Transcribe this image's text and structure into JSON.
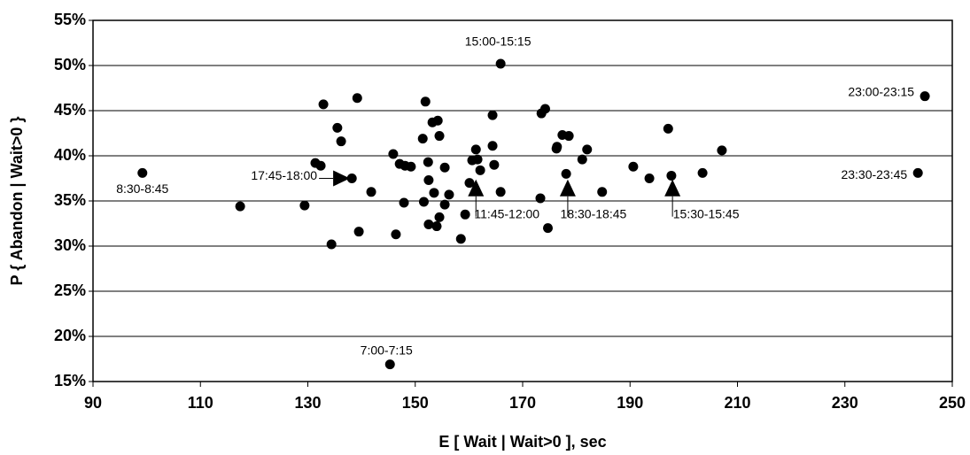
{
  "chart_data": {
    "type": "scatter",
    "xlabel": "E [ Wait | Wait>0 ], sec",
    "ylabel": "P { Abandon | Wait>0 }",
    "color": "#000000",
    "grid": true,
    "xlim": [
      90,
      250
    ],
    "xticks": [
      90,
      110,
      130,
      150,
      170,
      190,
      210,
      230,
      250
    ],
    "ylim": [
      15,
      55
    ],
    "yticks": [
      {
        "value": 15,
        "label": "15%"
      },
      {
        "value": 20,
        "label": "20%"
      },
      {
        "value": 25,
        "label": "25%"
      },
      {
        "value": 30,
        "label": "30%"
      },
      {
        "value": 35,
        "label": "35%"
      },
      {
        "value": 40,
        "label": "40%"
      },
      {
        "value": 45,
        "label": "45%"
      },
      {
        "value": 50,
        "label": "50%"
      },
      {
        "value": 55,
        "label": "55%"
      }
    ],
    "x": [
      117.4,
      129.4,
      134.4,
      131.4,
      132.4,
      132.9,
      135.5,
      136.2,
      138.2,
      139.2,
      139.5,
      141.8,
      145.9,
      146.4,
      147.1,
      148.1,
      149.2,
      147.9,
      151.9,
      151.4,
      151.6,
      152.4,
      152.5,
      152.5,
      153.2,
      154.2,
      154.5,
      153.5,
      154.0,
      154.5,
      155.5,
      155.5,
      156.3,
      158.5,
      159.3,
      160.1,
      160.6,
      161.3,
      161.6,
      162.1,
      164.4,
      164.4,
      164.7,
      165.9,
      173.3,
      173.5,
      174.2,
      174.7,
      176.3,
      176.4,
      177.4,
      178.6,
      178.1,
      181.1,
      182.0,
      184.8,
      190.6,
      193.6,
      197.1,
      197.7,
      203.5,
      207.1
    ],
    "values": [
      34.4,
      34.5,
      30.2,
      39.2,
      38.9,
      45.7,
      43.1,
      41.6,
      37.5,
      46.4,
      31.6,
      36.0,
      40.2,
      31.3,
      39.1,
      38.9,
      38.8,
      34.8,
      46.0,
      41.9,
      34.9,
      39.3,
      37.3,
      32.4,
      43.7,
      43.9,
      42.2,
      35.9,
      32.2,
      33.2,
      38.7,
      34.6,
      35.7,
      30.8,
      33.5,
      37.0,
      39.5,
      40.7,
      39.6,
      38.4,
      44.5,
      41.1,
      39.0,
      36.0,
      35.3,
      44.7,
      45.2,
      32.0,
      40.8,
      41.0,
      42.3,
      42.2,
      38.0,
      39.6,
      40.7,
      36.0,
      38.8,
      37.5,
      43.0,
      37.8,
      38.1,
      40.6
    ],
    "annotations": [
      {
        "text": "8:30-8:45",
        "x": 99.2,
        "y": 38.1,
        "marker": "dot"
      },
      {
        "text": "7:00-7:15",
        "x": 145.3,
        "y": 16.9,
        "marker": "dot"
      },
      {
        "text": "15:00-15:15",
        "x": 165.9,
        "y": 50.2,
        "marker": "dot"
      },
      {
        "text": "23:00-23:15",
        "x": 244.9,
        "y": 46.6,
        "marker": "dot"
      },
      {
        "text": "23:30-23:45",
        "x": 243.6,
        "y": 38.1,
        "marker": "dot"
      },
      {
        "text": "17:45-18:00",
        "x": 136.2,
        "y": 37.5,
        "marker": "triangle-right"
      },
      {
        "text": "11:45-12:00",
        "x": 161.3,
        "y": 36.4,
        "marker": "triangle-up"
      },
      {
        "text": "18:30-18:45",
        "x": 178.4,
        "y": 36.4,
        "marker": "triangle-up"
      },
      {
        "text": "15:30-15:45",
        "x": 197.9,
        "y": 36.4,
        "marker": "triangle-up"
      }
    ]
  }
}
